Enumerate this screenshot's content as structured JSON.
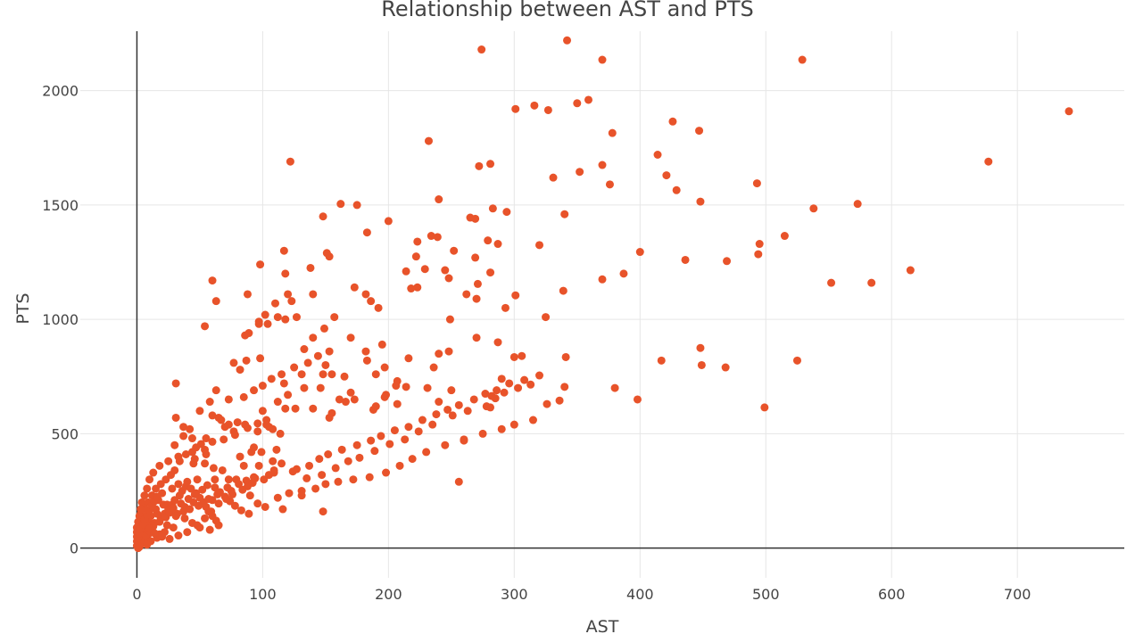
{
  "chart_data": {
    "type": "scatter",
    "title": "Relationship between AST and PTS",
    "xlabel": "AST",
    "ylabel": "PTS",
    "xlim": [
      -45,
      785
    ],
    "ylim": [
      -130,
      2260
    ],
    "x_ticks": [
      0,
      100,
      200,
      300,
      400,
      500,
      600,
      700
    ],
    "y_ticks": [
      0,
      500,
      1000,
      1500,
      2000
    ],
    "grid": true,
    "marker_color": "#e8532a",
    "points": [
      [
        342,
        2220
      ],
      [
        274,
        2180
      ],
      [
        370,
        2135
      ],
      [
        529,
        2135
      ],
      [
        741,
        1910
      ],
      [
        359,
        1960
      ],
      [
        350,
        1945
      ],
      [
        316,
        1935
      ],
      [
        327,
        1915
      ],
      [
        301,
        1920
      ],
      [
        426,
        1865
      ],
      [
        447,
        1825
      ],
      [
        378,
        1815
      ],
      [
        232,
        1780
      ],
      [
        414,
        1720
      ],
      [
        677,
        1690
      ],
      [
        122,
        1690
      ],
      [
        281,
        1680
      ],
      [
        272,
        1670
      ],
      [
        370,
        1675
      ],
      [
        352,
        1645
      ],
      [
        331,
        1620
      ],
      [
        421,
        1630
      ],
      [
        376,
        1590
      ],
      [
        493,
        1595
      ],
      [
        429,
        1565
      ],
      [
        240,
        1525
      ],
      [
        448,
        1515
      ],
      [
        573,
        1505
      ],
      [
        162,
        1505
      ],
      [
        175,
        1500
      ],
      [
        283,
        1485
      ],
      [
        538,
        1485
      ],
      [
        294,
        1470
      ],
      [
        340,
        1460
      ],
      [
        148,
        1450
      ],
      [
        265,
        1445
      ],
      [
        269,
        1440
      ],
      [
        200,
        1430
      ],
      [
        183,
        1380
      ],
      [
        234,
        1365
      ],
      [
        239,
        1360
      ],
      [
        515,
        1365
      ],
      [
        223,
        1340
      ],
      [
        279,
        1345
      ],
      [
        287,
        1330
      ],
      [
        495,
        1330
      ],
      [
        320,
        1325
      ],
      [
        400,
        1295
      ],
      [
        494,
        1285
      ],
      [
        117,
        1300
      ],
      [
        252,
        1300
      ],
      [
        151,
        1290
      ],
      [
        153,
        1275
      ],
      [
        222,
        1275
      ],
      [
        269,
        1270
      ],
      [
        436,
        1260
      ],
      [
        469,
        1255
      ],
      [
        98,
        1240
      ],
      [
        229,
        1220
      ],
      [
        138,
        1225
      ],
      [
        245,
        1215
      ],
      [
        615,
        1215
      ],
      [
        214,
        1210
      ],
      [
        281,
        1205
      ],
      [
        387,
        1200
      ],
      [
        118,
        1200
      ],
      [
        248,
        1180
      ],
      [
        370,
        1175
      ],
      [
        60,
        1170
      ],
      [
        552,
        1160
      ],
      [
        584,
        1160
      ],
      [
        223,
        1140
      ],
      [
        120,
        1110
      ],
      [
        88,
        1110
      ],
      [
        140,
        1110
      ],
      [
        271,
        1155
      ],
      [
        173,
        1140
      ],
      [
        218,
        1135
      ],
      [
        339,
        1125
      ],
      [
        182,
        1110
      ],
      [
        301,
        1105
      ],
      [
        262,
        1110
      ],
      [
        192,
        1050
      ],
      [
        63,
        1080
      ],
      [
        186,
        1080
      ],
      [
        97,
        980
      ],
      [
        270,
        1090
      ],
      [
        123,
        1080
      ],
      [
        110,
        1070
      ],
      [
        293,
        1050
      ],
      [
        102,
        1020
      ],
      [
        127,
        1010
      ],
      [
        112,
        1010
      ],
      [
        157,
        1010
      ],
      [
        249,
        1000
      ],
      [
        325,
        1010
      ],
      [
        118,
        1000
      ],
      [
        97,
        990
      ],
      [
        104,
        980
      ],
      [
        149,
        960
      ],
      [
        54,
        970
      ],
      [
        133,
        870
      ],
      [
        140,
        920
      ],
      [
        170,
        920
      ],
      [
        270,
        920
      ],
      [
        287,
        900
      ],
      [
        195,
        890
      ],
      [
        89,
        940
      ],
      [
        86,
        930
      ],
      [
        77,
        810
      ],
      [
        87,
        820
      ],
      [
        98,
        830
      ],
      [
        82,
        780
      ],
      [
        148,
        760
      ],
      [
        150,
        800
      ],
      [
        165,
        750
      ],
      [
        182,
        860
      ],
      [
        183,
        820
      ],
      [
        248,
        860
      ],
      [
        240,
        850
      ],
      [
        300,
        835
      ],
      [
        306,
        840
      ],
      [
        341,
        835
      ],
      [
        216,
        830
      ],
      [
        197,
        790
      ],
      [
        236,
        790
      ],
      [
        155,
        760
      ],
      [
        131,
        760
      ],
      [
        117,
        720
      ],
      [
        207,
        730
      ],
      [
        206,
        710
      ],
      [
        190,
        760
      ],
      [
        170,
        680
      ],
      [
        231,
        700
      ],
      [
        250,
        690
      ],
      [
        340,
        705
      ],
      [
        380,
        700
      ],
      [
        290,
        740
      ],
      [
        282,
        665
      ],
      [
        281,
        615
      ],
      [
        240,
        640
      ],
      [
        173,
        650
      ],
      [
        161,
        650
      ],
      [
        166,
        640
      ],
      [
        155,
        590
      ],
      [
        100,
        600
      ],
      [
        112,
        640
      ],
      [
        120,
        670
      ],
      [
        133,
        700
      ],
      [
        146,
        700
      ],
      [
        197,
        660
      ],
      [
        214,
        705
      ],
      [
        198,
        670
      ],
      [
        188,
        605
      ],
      [
        190,
        620
      ],
      [
        207,
        630
      ],
      [
        153,
        570
      ],
      [
        140,
        610
      ],
      [
        118,
        610
      ],
      [
        126,
        610
      ],
      [
        103,
        560
      ],
      [
        86,
        540
      ],
      [
        73,
        540
      ],
      [
        65,
        570
      ],
      [
        80,
        550
      ],
      [
        103,
        540
      ],
      [
        96,
        510
      ],
      [
        108,
        520
      ],
      [
        77,
        510
      ],
      [
        70,
        530
      ],
      [
        60,
        580
      ],
      [
        67,
        560
      ],
      [
        31,
        570
      ],
      [
        42,
        520
      ],
      [
        30,
        450
      ],
      [
        37,
        490
      ],
      [
        55,
        480
      ],
      [
        44,
        480
      ],
      [
        54,
        430
      ],
      [
        47,
        440
      ],
      [
        33,
        400
      ],
      [
        46,
        390
      ],
      [
        55,
        410
      ],
      [
        61,
        350
      ],
      [
        68,
        340
      ],
      [
        54,
        370
      ],
      [
        45,
        370
      ],
      [
        82,
        400
      ],
      [
        91,
        420
      ],
      [
        93,
        440
      ],
      [
        111,
        430
      ],
      [
        99,
        420
      ],
      [
        108,
        380
      ],
      [
        97,
        360
      ],
      [
        115,
        370
      ],
      [
        85,
        360
      ],
      [
        109,
        340
      ],
      [
        93,
        310
      ],
      [
        73,
        300
      ],
      [
        62,
        300
      ],
      [
        48,
        300
      ],
      [
        40,
        290
      ],
      [
        33,
        280
      ],
      [
        28,
        260
      ],
      [
        20,
        240
      ],
      [
        17,
        210
      ],
      [
        24,
        190
      ],
      [
        15,
        170
      ],
      [
        11,
        140
      ],
      [
        9,
        120
      ],
      [
        6,
        100
      ],
      [
        4,
        80
      ],
      [
        2,
        60
      ],
      [
        3,
        40
      ],
      [
        1,
        20
      ],
      [
        0,
        10
      ],
      [
        5,
        30
      ],
      [
        8,
        70
      ],
      [
        12,
        90
      ],
      [
        14,
        110
      ],
      [
        19,
        130
      ],
      [
        22,
        150
      ],
      [
        25,
        170
      ],
      [
        28,
        190
      ],
      [
        30,
        210
      ],
      [
        34,
        230
      ],
      [
        36,
        250
      ],
      [
        39,
        270
      ],
      [
        43,
        260
      ],
      [
        47,
        240
      ],
      [
        50,
        220
      ],
      [
        53,
        200
      ],
      [
        55,
        180
      ],
      [
        57,
        160
      ],
      [
        60,
        140
      ],
      [
        63,
        120
      ],
      [
        65,
        100
      ],
      [
        58,
        80
      ],
      [
        50,
        90
      ],
      [
        44,
        110
      ],
      [
        38,
        130
      ],
      [
        32,
        150
      ],
      [
        27,
        170
      ],
      [
        21,
        190
      ],
      [
        16,
        150
      ],
      [
        12,
        100
      ],
      [
        9,
        60
      ],
      [
        6,
        40
      ],
      [
        4,
        20
      ],
      [
        2,
        5
      ],
      [
        1,
        0
      ],
      [
        7,
        55
      ],
      [
        10,
        75
      ],
      [
        13,
        95
      ],
      [
        18,
        115
      ],
      [
        23,
        135
      ],
      [
        26,
        155
      ],
      [
        29,
        175
      ],
      [
        35,
        195
      ],
      [
        41,
        215
      ],
      [
        46,
        235
      ],
      [
        52,
        255
      ],
      [
        56,
        275
      ],
      [
        62,
        265
      ],
      [
        66,
        245
      ],
      [
        70,
        225
      ],
      [
        74,
        205
      ],
      [
        78,
        185
      ],
      [
        83,
        165
      ],
      [
        89,
        150
      ],
      [
        96,
        195
      ],
      [
        102,
        180
      ],
      [
        112,
        220
      ],
      [
        121,
        240
      ],
      [
        131,
        250
      ],
      [
        142,
        260
      ],
      [
        150,
        280
      ],
      [
        160,
        290
      ],
      [
        172,
        300
      ],
      [
        185,
        310
      ],
      [
        198,
        330
      ],
      [
        209,
        360
      ],
      [
        219,
        390
      ],
      [
        230,
        420
      ],
      [
        245,
        450
      ],
      [
        260,
        470
      ],
      [
        275,
        500
      ],
      [
        290,
        520
      ],
      [
        300,
        540
      ],
      [
        315,
        560
      ],
      [
        326,
        630
      ],
      [
        336,
        645
      ],
      [
        398,
        650
      ],
      [
        448,
        875
      ],
      [
        449,
        800
      ],
      [
        468,
        790
      ],
      [
        417,
        820
      ],
      [
        525,
        820
      ],
      [
        499,
        615
      ],
      [
        260,
        475
      ],
      [
        256,
        290
      ],
      [
        148,
        160
      ],
      [
        131,
        230
      ],
      [
        116,
        170
      ],
      [
        88,
        270
      ],
      [
        79,
        300
      ],
      [
        90,
        230
      ],
      [
        75,
        250
      ],
      [
        60,
        210
      ],
      [
        45,
        200
      ],
      [
        38,
        180
      ],
      [
        29,
        90
      ],
      [
        22,
        70
      ],
      [
        16,
        45
      ],
      [
        11,
        30
      ],
      [
        8,
        15
      ],
      [
        18,
        60
      ],
      [
        24,
        100
      ],
      [
        31,
        140
      ],
      [
        37,
        160
      ],
      [
        42,
        170
      ],
      [
        49,
        185
      ],
      [
        57,
        215
      ],
      [
        64,
        235
      ],
      [
        72,
        265
      ],
      [
        81,
        280
      ],
      [
        87,
        295
      ],
      [
        94,
        305
      ],
      [
        105,
        320
      ],
      [
        124,
        335
      ],
      [
        135,
        305
      ],
      [
        147,
        320
      ],
      [
        158,
        350
      ],
      [
        168,
        380
      ],
      [
        177,
        395
      ],
      [
        189,
        425
      ],
      [
        201,
        455
      ],
      [
        213,
        475
      ],
      [
        224,
        510
      ],
      [
        235,
        540
      ],
      [
        251,
        580
      ],
      [
        263,
        600
      ],
      [
        278,
        620
      ],
      [
        285,
        655
      ],
      [
        292,
        680
      ],
      [
        303,
        700
      ],
      [
        313,
        715
      ],
      [
        114,
        500
      ],
      [
        105,
        530
      ],
      [
        96,
        545
      ],
      [
        88,
        525
      ],
      [
        78,
        495
      ],
      [
        69,
        475
      ],
      [
        60,
        465
      ],
      [
        51,
        455
      ],
      [
        44,
        420
      ],
      [
        39,
        410
      ],
      [
        34,
        380
      ],
      [
        30,
        340
      ],
      [
        27,
        320
      ],
      [
        23,
        300
      ],
      [
        19,
        280
      ],
      [
        15,
        260
      ],
      [
        12,
        230
      ],
      [
        9,
        200
      ],
      [
        6,
        175
      ],
      [
        3,
        150
      ],
      [
        5,
        125
      ],
      [
        7,
        105
      ],
      [
        10,
        85
      ],
      [
        14,
        65
      ],
      [
        20,
        50
      ],
      [
        26,
        40
      ],
      [
        33,
        55
      ],
      [
        40,
        70
      ],
      [
        48,
        100
      ],
      [
        54,
        130
      ],
      [
        59,
        160
      ],
      [
        65,
        195
      ],
      [
        71,
        215
      ],
      [
        76,
        235
      ],
      [
        84,
        255
      ],
      [
        92,
        285
      ],
      [
        101,
        300
      ],
      [
        109,
        330
      ],
      [
        127,
        345
      ],
      [
        137,
        360
      ],
      [
        145,
        390
      ],
      [
        152,
        410
      ],
      [
        163,
        430
      ],
      [
        175,
        450
      ],
      [
        186,
        470
      ],
      [
        194,
        490
      ],
      [
        205,
        515
      ],
      [
        216,
        530
      ],
      [
        227,
        560
      ],
      [
        238,
        585
      ],
      [
        247,
        605
      ],
      [
        256,
        625
      ],
      [
        268,
        650
      ],
      [
        277,
        675
      ],
      [
        286,
        690
      ],
      [
        296,
        720
      ],
      [
        308,
        735
      ],
      [
        320,
        755
      ],
      [
        63,
        690
      ],
      [
        58,
        640
      ],
      [
        50,
        600
      ],
      [
        73,
        650
      ],
      [
        85,
        660
      ],
      [
        93,
        690
      ],
      [
        100,
        710
      ],
      [
        107,
        740
      ],
      [
        115,
        760
      ],
      [
        125,
        790
      ],
      [
        136,
        810
      ],
      [
        144,
        840
      ],
      [
        153,
        860
      ],
      [
        31,
        720
      ],
      [
        37,
        530
      ],
      [
        25,
        380
      ],
      [
        18,
        360
      ],
      [
        13,
        330
      ],
      [
        10,
        300
      ],
      [
        8,
        260
      ],
      [
        6,
        230
      ],
      [
        4,
        200
      ],
      [
        3,
        170
      ],
      [
        2,
        140
      ],
      [
        1,
        115
      ],
      [
        0,
        90
      ],
      [
        0,
        70
      ],
      [
        0,
        50
      ],
      [
        0,
        30
      ],
      [
        1,
        45
      ],
      [
        2,
        65
      ],
      [
        3,
        85
      ],
      [
        5,
        105
      ],
      [
        6,
        125
      ],
      [
        8,
        145
      ],
      [
        10,
        165
      ],
      [
        12,
        185
      ],
      [
        14,
        205
      ],
      [
        16,
        225
      ]
    ]
  }
}
